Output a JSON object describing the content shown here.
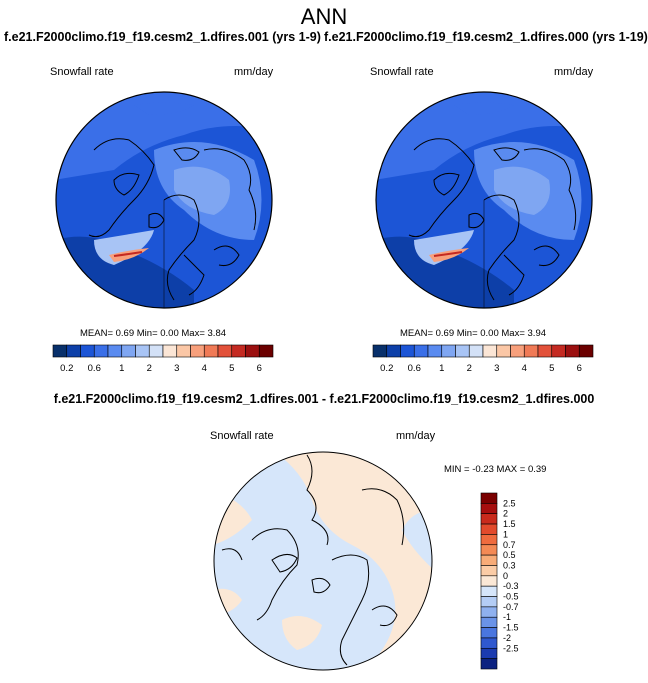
{
  "page_title": "ANN",
  "case_left": "f.e21.F2000climo.f19_f19.cesm2_1.dfires.001 (yrs 1-9)",
  "case_right": "f.e21.F2000climo.f19_f19.cesm2_1.dfires.000 (yrs 1-19)",
  "diff_title": "f.e21.F2000climo.f19_f19.cesm2_1.dfires.001 - f.e21.F2000climo.f19_f19.cesm2_1.dfires.000",
  "panels": {
    "left": {
      "label": "Snowfall rate",
      "units": "mm/day",
      "stats": "MEAN=  0.69  Min=  0.00  Max=   3.84"
    },
    "right": {
      "label": "Snowfall rate",
      "units": "mm/day",
      "stats": "MEAN=  0.69  Min=  0.00  Max=   3.94"
    },
    "diff": {
      "label": "Snowfall rate",
      "units": "mm/day",
      "stats": "MIN = -0.23 MAX =   0.39"
    }
  },
  "colorbar_main": {
    "colors": [
      "#08306b",
      "#0d3fa8",
      "#1c55d6",
      "#3a6fe8",
      "#5a8bf0",
      "#7fa6f2",
      "#a8c4f5",
      "#d3e1f7",
      "#fbe6d6",
      "#fbc7a6",
      "#f8a07c",
      "#f07a56",
      "#e2513a",
      "#c42a22",
      "#9b1010",
      "#6b0000"
    ],
    "labels": [
      "0.2",
      "0.6",
      "1",
      "2",
      "3",
      "4",
      "5",
      "6"
    ]
  },
  "colorbar_diff": {
    "colors": [
      "#7a0000",
      "#a60e0e",
      "#c92a1c",
      "#e24a2c",
      "#ef6b3e",
      "#f48a55",
      "#f8ac78",
      "#fbcca6",
      "#fbe8d6",
      "#d6e6fa",
      "#b4cdf5",
      "#8fb1ef",
      "#6a93e8",
      "#4a76df",
      "#2f58cf",
      "#1b3bb0",
      "#0c2280"
    ],
    "labels": [
      "2.5",
      "2",
      "1.5",
      "1",
      "0.7",
      "0.5",
      "0.3",
      "0",
      "-0.3",
      "-0.5",
      "-0.7",
      "-1",
      "-1.5",
      "-2",
      "-2.5"
    ]
  },
  "colors": {
    "diff_neg": "#d6e6fa",
    "diff_pos": "#fbe8d6",
    "coast": "#000000"
  }
}
